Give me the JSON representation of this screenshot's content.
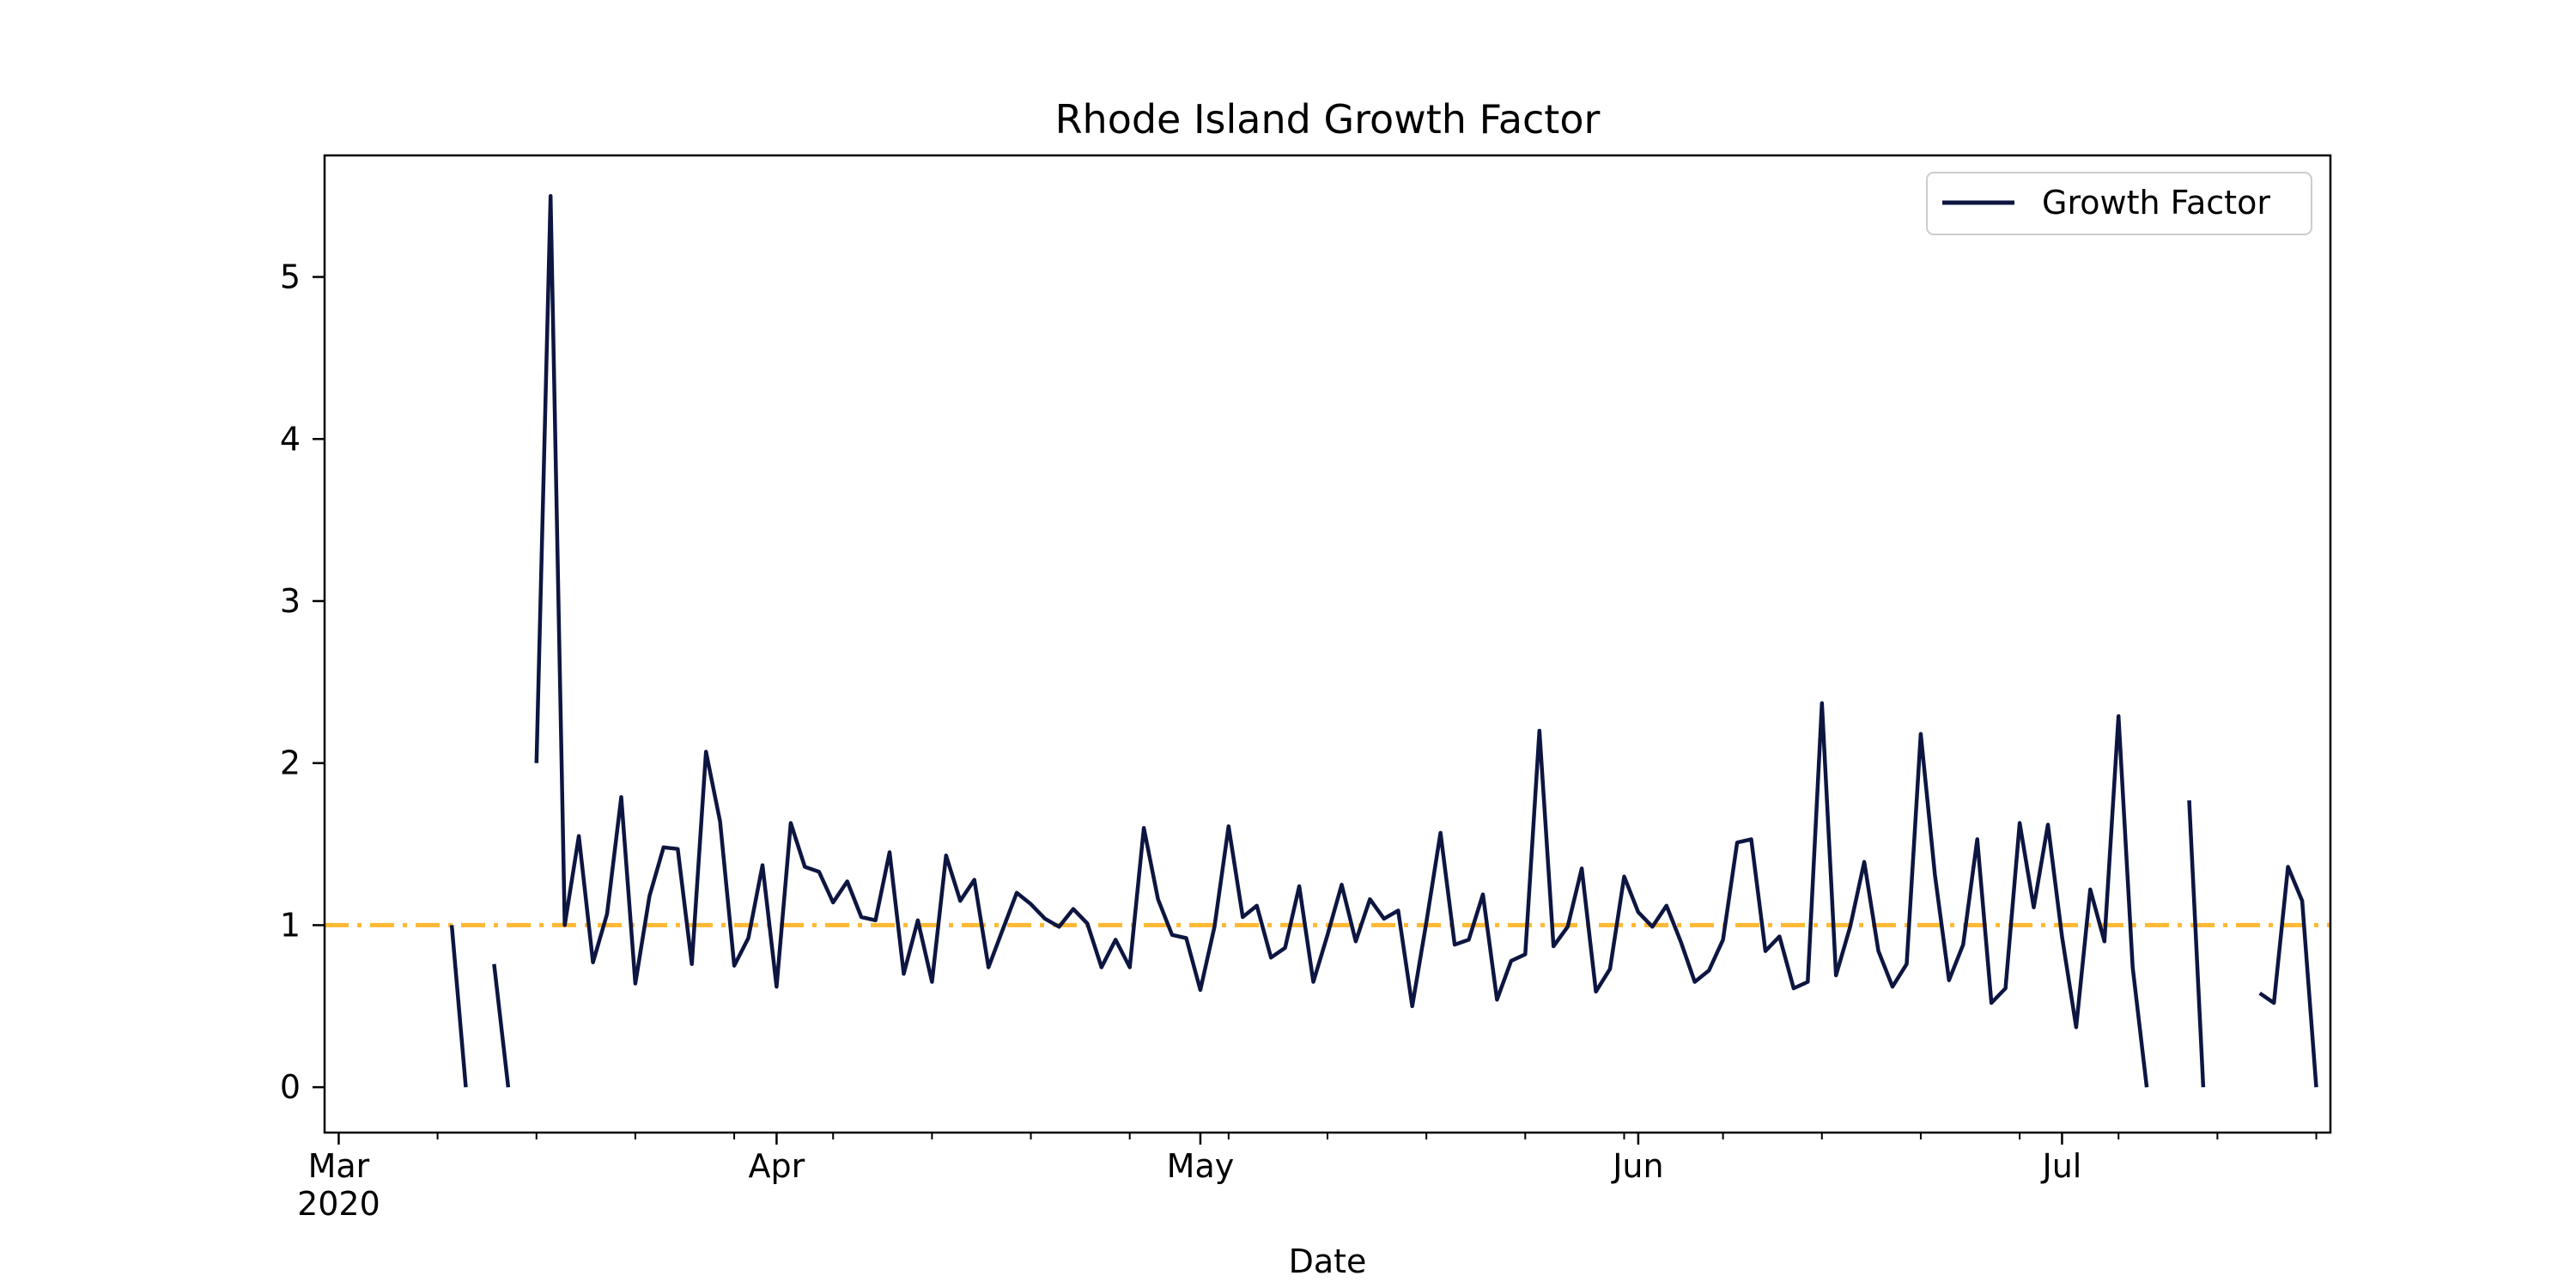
{
  "chart_data": {
    "type": "line",
    "title": "Rhode Island Growth Factor",
    "xlabel": "Date",
    "ylabel": "",
    "x_start": "2020-02-29",
    "x_end": "2020-07-20",
    "ylim": [
      -0.28,
      5.75
    ],
    "y_ticks": [
      0,
      1,
      2,
      3,
      4,
      5
    ],
    "x_ticks": [
      {
        "date": "2020-03-01",
        "label": "Mar",
        "sublabel": "2020"
      },
      {
        "date": "2020-04-01",
        "label": "Apr",
        "sublabel": ""
      },
      {
        "date": "2020-05-01",
        "label": "May",
        "sublabel": ""
      },
      {
        "date": "2020-06-01",
        "label": "Jun",
        "sublabel": ""
      },
      {
        "date": "2020-07-01",
        "label": "Jul",
        "sublabel": ""
      }
    ],
    "x_minor_ticks": [
      "2020-03-08",
      "2020-03-15",
      "2020-03-22",
      "2020-03-29",
      "2020-04-05",
      "2020-04-12",
      "2020-04-19",
      "2020-04-26",
      "2020-05-03",
      "2020-05-10",
      "2020-05-17",
      "2020-05-24",
      "2020-05-31",
      "2020-06-07",
      "2020-06-14",
      "2020-06-21",
      "2020-06-28",
      "2020-07-05",
      "2020-07-12",
      "2020-07-19"
    ],
    "grid": false,
    "legend_position": "top-right",
    "reference_line": {
      "y": 1,
      "color": "#ffb833",
      "style": "dash-dot"
    },
    "series": [
      {
        "name": "Growth Factor",
        "color": "#0d1541",
        "start_date": "2020-03-09",
        "values": [
          1.0,
          0.0,
          null,
          0.76,
          0.0,
          null,
          2.0,
          5.5,
          1.0,
          1.55,
          0.77,
          1.07,
          1.79,
          0.64,
          1.18,
          1.48,
          1.47,
          0.76,
          2.07,
          1.64,
          0.75,
          0.92,
          1.37,
          0.62,
          1.63,
          1.36,
          1.33,
          1.14,
          1.27,
          1.05,
          1.03,
          1.45,
          0.7,
          1.03,
          0.65,
          1.43,
          1.15,
          1.28,
          0.74,
          0.97,
          1.2,
          1.13,
          1.04,
          0.99,
          1.1,
          1.01,
          0.74,
          0.91,
          0.74,
          1.6,
          1.16,
          0.94,
          0.92,
          0.6,
          0.99,
          1.61,
          1.05,
          1.12,
          0.8,
          0.86,
          1.24,
          0.65,
          0.94,
          1.25,
          0.9,
          1.16,
          1.04,
          1.09,
          0.5,
          1.02,
          1.57,
          0.88,
          0.91,
          1.19,
          0.54,
          0.78,
          0.82,
          2.2,
          0.87,
          0.99,
          1.35,
          0.59,
          0.73,
          1.3,
          1.08,
          0.99,
          1.12,
          0.9,
          0.65,
          0.72,
          0.91,
          1.51,
          1.53,
          0.84,
          0.93,
          0.61,
          0.65,
          2.37,
          0.69,
          0.99,
          1.39,
          0.84,
          0.62,
          0.76,
          2.18,
          1.31,
          0.66,
          0.88,
          1.53,
          0.52,
          0.61,
          1.63,
          1.11,
          1.62,
          0.93,
          0.37,
          1.22,
          0.9,
          2.29,
          0.74,
          0.0,
          null,
          null,
          1.77,
          0.0,
          null,
          null,
          null,
          0.58,
          0.52,
          1.36,
          1.15,
          0.0
        ]
      }
    ]
  }
}
